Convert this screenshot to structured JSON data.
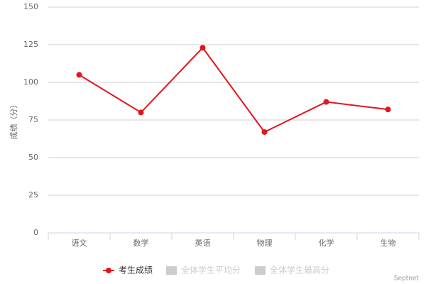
{
  "chart_data": {
    "type": "line",
    "y_axis_title": "成绩（分）",
    "categories": [
      "语文",
      "数学",
      "英语",
      "物理",
      "化学",
      "生物"
    ],
    "series": [
      {
        "name": "考生成绩",
        "color": "#e4141b",
        "values": [
          105,
          80,
          123,
          67,
          87,
          82
        ],
        "visible": true
      },
      {
        "name": "全体学生平均分",
        "color": "#cccccc",
        "values": [
          null,
          null,
          null,
          null,
          null,
          null
        ],
        "visible": false
      },
      {
        "name": "全体学生最高分",
        "color": "#cccccc",
        "values": [
          null,
          null,
          null,
          null,
          null,
          null
        ],
        "visible": false
      }
    ],
    "ylim": [
      0,
      150
    ],
    "yticks": [
      0,
      25,
      50,
      75,
      100,
      125,
      150
    ],
    "grid": true,
    "legend": "bottom",
    "credits": "Septnet"
  }
}
